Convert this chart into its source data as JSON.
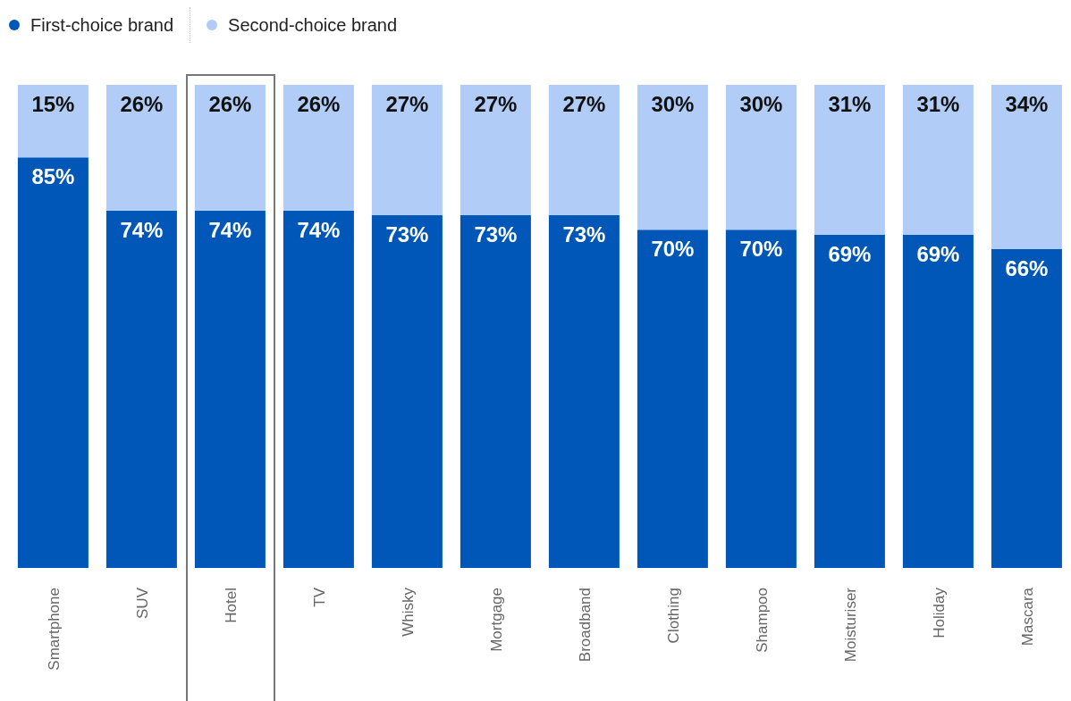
{
  "chart_data": {
    "type": "bar",
    "stacked": true,
    "categories": [
      "Smartphone",
      "SUV",
      "Hotel",
      "TV",
      "Whisky",
      "Mortgage",
      "Broadband",
      "Clothing",
      "Shampoo",
      "Moisturiser",
      "Holiday",
      "Mascara"
    ],
    "series": [
      {
        "name": "First-choice brand",
        "color": "#0057b8",
        "values": [
          85,
          74,
          74,
          74,
          73,
          73,
          73,
          70,
          70,
          69,
          69,
          66
        ],
        "value_labels": [
          "85%",
          "74%",
          "74%",
          "74%",
          "73%",
          "73%",
          "73%",
          "70%",
          "70%",
          "69%",
          "69%",
          "66%"
        ]
      },
      {
        "name": "Second-choice brand",
        "color": "#b0ccf7",
        "values": [
          15,
          26,
          26,
          26,
          27,
          27,
          27,
          30,
          30,
          31,
          31,
          34
        ],
        "value_labels": [
          "15%",
          "26%",
          "26%",
          "26%",
          "27%",
          "27%",
          "27%",
          "30%",
          "30%",
          "31%",
          "31%",
          "34%"
        ]
      }
    ],
    "ylim": [
      0,
      100
    ],
    "tick_labels": "x",
    "legend": "top left",
    "grid": false
  }
}
